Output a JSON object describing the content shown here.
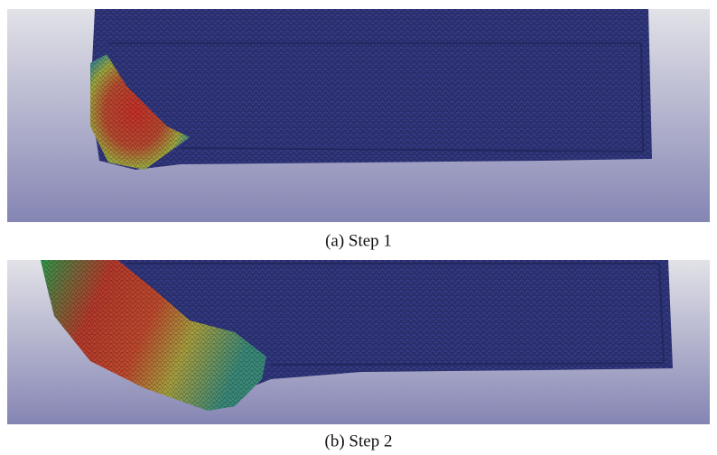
{
  "panels": [
    {
      "caption": "(a) Step 1"
    },
    {
      "caption": "(b) Step 2"
    }
  ]
}
